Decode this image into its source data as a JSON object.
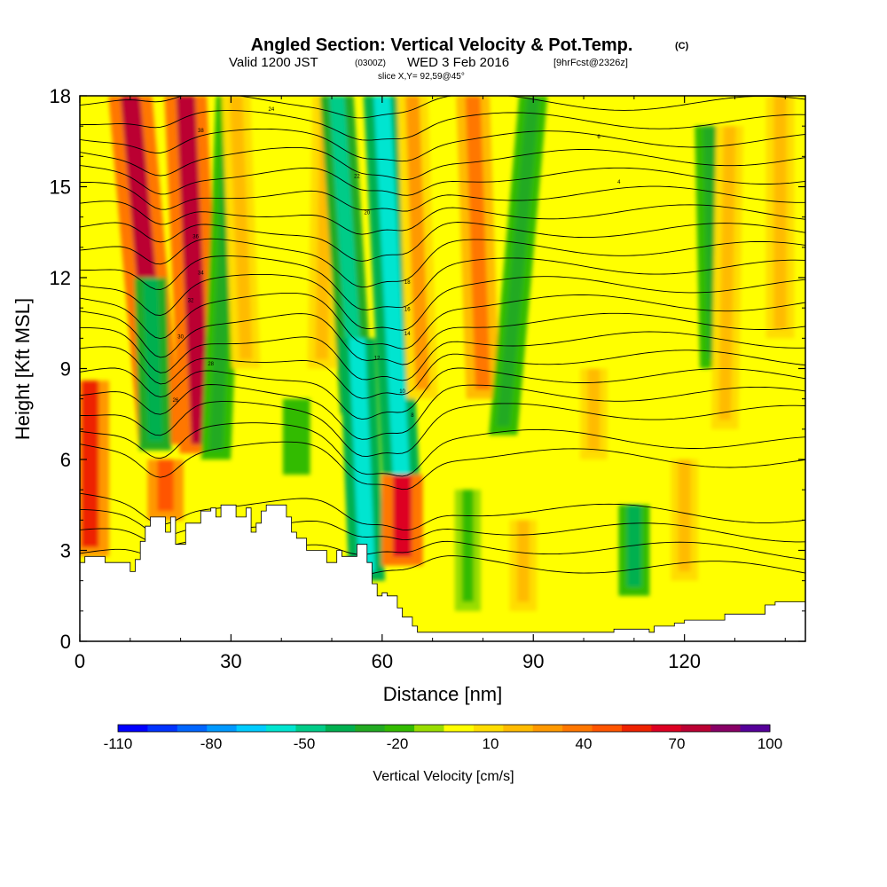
{
  "header": {
    "title": "Angled Section: Vertical Velocity & Pot.Temp.",
    "title_unit": "(C)",
    "valid_prefix": "Valid 1200 JST",
    "valid_utc": "(0300Z)",
    "valid_date": "WED 3 Feb 2016",
    "forecast": "[9hrFcst@2326z]",
    "slice": "slice X,Y= 92,59@45°"
  },
  "chart_data": {
    "type": "heatmap",
    "xlabel": "Distance [nm]",
    "ylabel": "Height [Kft MSL]",
    "xlim": [
      0,
      144
    ],
    "ylim": [
      0,
      18
    ],
    "xticks": [
      0,
      30,
      60,
      90,
      120
    ],
    "yticks": [
      0,
      3,
      6,
      9,
      12,
      15,
      18
    ],
    "colorbar": {
      "label": "Vertical Velocity [cm/s]",
      "tick_labels": [
        "-110",
        "-80",
        "-50",
        "-20",
        "10",
        "40",
        "70",
        "100"
      ],
      "tick_values": [
        -110,
        -80,
        -50,
        -20,
        10,
        40,
        70,
        100
      ],
      "bins": [
        -110,
        -100,
        -90,
        -80,
        -70,
        -60,
        -50,
        -40,
        -30,
        -20,
        -10,
        0,
        10,
        20,
        30,
        40,
        50,
        60,
        70,
        80,
        90,
        100
      ],
      "colors": [
        "#0000ff",
        "#0033ff",
        "#0066ff",
        "#0099ff",
        "#00ccff",
        "#00e5d0",
        "#00cc88",
        "#00b050",
        "#22aa22",
        "#33bb00",
        "#99dd00",
        "#ffff00",
        "#ffdd00",
        "#ffbb00",
        "#ff9900",
        "#ff7700",
        "#ff5500",
        "#ee2200",
        "#dd0022",
        "#bb0033",
        "#880066",
        "#550099"
      ]
    },
    "plumes": [
      {
        "x_base": 2,
        "x_top": 2,
        "z_bottom": 2.8,
        "z_top": 8.6,
        "value": 65
      },
      {
        "x_base": 16,
        "x_top": 10,
        "z_bottom": 6.5,
        "z_top": 18,
        "value": 85
      },
      {
        "x_base": 15,
        "x_top": 14,
        "z_bottom": 6.3,
        "z_top": 12,
        "value": -40
      },
      {
        "x_base": 17,
        "x_top": 17,
        "z_bottom": 4,
        "z_top": 6,
        "value": 55
      },
      {
        "x_base": 24,
        "x_top": 21,
        "z_bottom": 6.2,
        "z_top": 18,
        "value": 80
      },
      {
        "x_base": 27,
        "x_top": 30,
        "z_bottom": 6,
        "z_top": 18,
        "value": -30
      },
      {
        "x_base": 33,
        "x_top": 31,
        "z_bottom": 9,
        "z_top": 18,
        "value": 25
      },
      {
        "x_base": 43,
        "x_top": 43,
        "z_bottom": 5.5,
        "z_top": 8,
        "value": -20
      },
      {
        "x_base": 48,
        "x_top": 49,
        "z_bottom": 9,
        "z_top": 18,
        "value": 25
      },
      {
        "x_base": 55,
        "x_top": 51,
        "z_bottom": 7.5,
        "z_top": 18,
        "value": -45
      },
      {
        "x_base": 57,
        "x_top": 55,
        "z_bottom": 2,
        "z_top": 10,
        "value": -55
      },
      {
        "x_base": 64,
        "x_top": 60,
        "z_bottom": 4.5,
        "z_top": 18,
        "value": -60
      },
      {
        "x_base": 64,
        "x_top": 64,
        "z_bottom": 2.5,
        "z_top": 5.5,
        "value": 75
      },
      {
        "x_base": 68,
        "x_top": 66,
        "z_bottom": 8,
        "z_top": 18,
        "value": 35
      },
      {
        "x_base": 80,
        "x_top": 78,
        "z_bottom": 8,
        "z_top": 18,
        "value": 45
      },
      {
        "x_base": 84,
        "x_top": 90,
        "z_bottom": 6.8,
        "z_top": 18,
        "value": -25
      },
      {
        "x_base": 77,
        "x_top": 77,
        "z_bottom": 1,
        "z_top": 5,
        "value": -15
      },
      {
        "x_base": 88,
        "x_top": 88,
        "z_bottom": 1,
        "z_top": 4,
        "value": 20
      },
      {
        "x_base": 110,
        "x_top": 110,
        "z_bottom": 1.5,
        "z_top": 4.5,
        "value": -35
      },
      {
        "x_base": 102,
        "x_top": 102,
        "z_bottom": 6,
        "z_top": 9,
        "value": 20
      },
      {
        "x_base": 120,
        "x_top": 120,
        "z_bottom": 2,
        "z_top": 6,
        "value": 20
      },
      {
        "x_base": 126,
        "x_top": 125,
        "z_bottom": 9,
        "z_top": 17,
        "value": -30
      },
      {
        "x_base": 128,
        "x_top": 129,
        "z_bottom": 7,
        "z_top": 17,
        "value": 20
      },
      {
        "x_base": 139,
        "x_top": 139,
        "z_bottom": 10,
        "z_top": 18,
        "value": 25
      }
    ],
    "theta_contours": {
      "count": 28,
      "base_isotherm_z": 2.9,
      "spacing_kft": 0.6,
      "waves": [
        {
          "x": 16,
          "dz": -1.2,
          "width": 5
        },
        {
          "x": 56,
          "dz": -1.6,
          "width": 6
        },
        {
          "x": 65,
          "dz": -1.4,
          "width": 5
        }
      ],
      "labels": [
        "38",
        "36",
        "34",
        "32",
        "30",
        "28",
        "26",
        "24",
        "22",
        "20",
        "18",
        "16",
        "14",
        "12",
        "10",
        "8",
        "6",
        "4"
      ]
    },
    "terrain_profile": [
      [
        0,
        2.6
      ],
      [
        1,
        2.6
      ],
      [
        1,
        2.8
      ],
      [
        5,
        2.8
      ],
      [
        5,
        2.6
      ],
      [
        10,
        2.6
      ],
      [
        10,
        2.3
      ],
      [
        11,
        2.3
      ],
      [
        11,
        2.7
      ],
      [
        12,
        2.7
      ],
      [
        12,
        3.3
      ],
      [
        13,
        3.3
      ],
      [
        13,
        3.8
      ],
      [
        14,
        3.8
      ],
      [
        14,
        4.1
      ],
      [
        17,
        4.1
      ],
      [
        17,
        3.6
      ],
      [
        18,
        3.6
      ],
      [
        18,
        4.1
      ],
      [
        19,
        4.1
      ],
      [
        19,
        3.2
      ],
      [
        21,
        3.2
      ],
      [
        21,
        3.9
      ],
      [
        24,
        3.9
      ],
      [
        24,
        4.3
      ],
      [
        26,
        4.3
      ],
      [
        26,
        4.4
      ],
      [
        27,
        4.4
      ],
      [
        27,
        4.1
      ],
      [
        28,
        4.1
      ],
      [
        28,
        4.5
      ],
      [
        31,
        4.5
      ],
      [
        31,
        4.1
      ],
      [
        33,
        4.1
      ],
      [
        33,
        4.4
      ],
      [
        34,
        4.4
      ],
      [
        34,
        3.6
      ],
      [
        35,
        3.6
      ],
      [
        35,
        3.9
      ],
      [
        36,
        3.9
      ],
      [
        36,
        4.3
      ],
      [
        37,
        4.3
      ],
      [
        37,
        4.5
      ],
      [
        41,
        4.5
      ],
      [
        41,
        4.1
      ],
      [
        42,
        4.1
      ],
      [
        42,
        3.6
      ],
      [
        43,
        3.6
      ],
      [
        43,
        3.4
      ],
      [
        45,
        3.4
      ],
      [
        45,
        3.0
      ],
      [
        49,
        3.0
      ],
      [
        49,
        2.6
      ],
      [
        51,
        2.6
      ],
      [
        51,
        3.0
      ],
      [
        52,
        3.0
      ],
      [
        52,
        2.8
      ],
      [
        55,
        2.8
      ],
      [
        55,
        3.2
      ],
      [
        57,
        3.2
      ],
      [
        57,
        2.6
      ],
      [
        58,
        2.6
      ],
      [
        58,
        1.9
      ],
      [
        59,
        1.9
      ],
      [
        59,
        1.5
      ],
      [
        60,
        1.5
      ],
      [
        60,
        1.6
      ],
      [
        61,
        1.6
      ],
      [
        61,
        1.5
      ],
      [
        63,
        1.5
      ],
      [
        63,
        1.1
      ],
      [
        64,
        1.1
      ],
      [
        64,
        0.8
      ],
      [
        66,
        0.8
      ],
      [
        66,
        0.5
      ],
      [
        67,
        0.5
      ],
      [
        67,
        0.3
      ],
      [
        106,
        0.3
      ],
      [
        106,
        0.4
      ],
      [
        113,
        0.4
      ],
      [
        113,
        0.3
      ],
      [
        114,
        0.3
      ],
      [
        114,
        0.5
      ],
      [
        118,
        0.5
      ],
      [
        118,
        0.6
      ],
      [
        120,
        0.6
      ],
      [
        120,
        0.7
      ],
      [
        128,
        0.7
      ],
      [
        128,
        0.9
      ],
      [
        136,
        0.9
      ],
      [
        136,
        1.2
      ],
      [
        138,
        1.2
      ],
      [
        138,
        1.3
      ],
      [
        144,
        1.3
      ]
    ]
  }
}
